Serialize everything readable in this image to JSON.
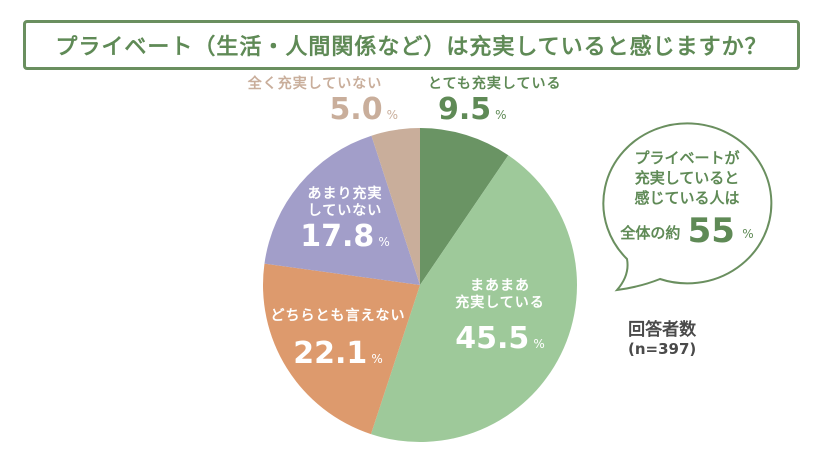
{
  "title": "プライベート（生活・人間関係など）は充実していると感じますか？",
  "colors": {
    "accent": "#5f8a56",
    "very_satisfied": "#6a9464",
    "somewhat_satisfied": "#9ec99a",
    "neither": "#dd9a6d",
    "not_very": "#a29ec9",
    "not_at_all": "#c9ae9b"
  },
  "slices": [
    {
      "label": "とても充実している",
      "value": "9.5",
      "pct": "%"
    },
    {
      "label1": "まあまあ",
      "label2": "充実している",
      "value": "45.5",
      "pct": "%"
    },
    {
      "label": "どちらとも言えない",
      "value": "22.1",
      "pct": "%"
    },
    {
      "label1": "あまり充実",
      "label2": "していない",
      "value": "17.8",
      "pct": "%"
    },
    {
      "label": "全く充実していない",
      "value": "5.0",
      "pct": "%"
    }
  ],
  "bubble": {
    "line1": "プライベートが",
    "line2": "充実していると",
    "line3": "感じている人は",
    "prefix": "全体の約",
    "value": "55",
    "pct": "%"
  },
  "respondents": {
    "label": "回答者数",
    "count": "(n=397)"
  },
  "chart_data": {
    "type": "pie",
    "title": "プライベート（生活・人間関係など）は充実していると感じますか？",
    "categories": [
      "とても充実している",
      "まあまあ充実している",
      "どちらとも言えない",
      "あまり充実していない",
      "全く充実していない"
    ],
    "values": [
      9.5,
      45.5,
      22.1,
      17.8,
      5.0
    ],
    "unit": "%",
    "start_angle": "12 o'clock, clockwise",
    "annotations": [
      "プライベートが充実していると感じている人は全体の約55%",
      "回答者数(n=397)"
    ],
    "legend": "none (direct labels)"
  }
}
